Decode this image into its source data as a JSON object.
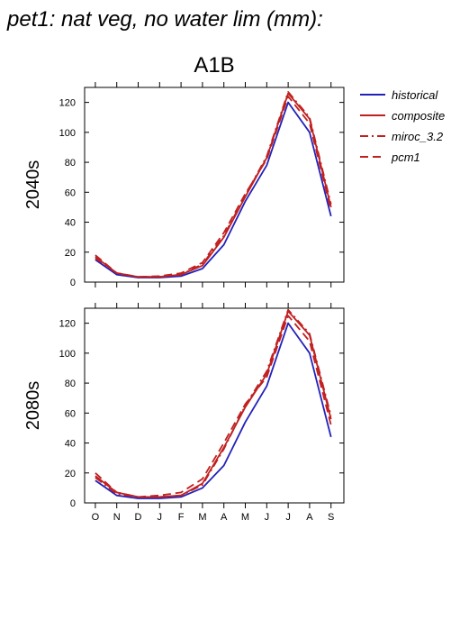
{
  "figure_title": "pet1: nat veg, no water lim (mm):",
  "chart_data": [
    {
      "type": "line",
      "title": "A1B",
      "ylabel": "2040s",
      "categories": [
        "O",
        "N",
        "D",
        "J",
        "F",
        "M",
        "A",
        "M",
        "J",
        "J",
        "A",
        "S"
      ],
      "ylim": [
        0,
        130
      ],
      "yticks": [
        0,
        20,
        40,
        60,
        80,
        100,
        120
      ],
      "series": [
        {
          "name": "historical",
          "color": "#2222bb",
          "dash": "solid",
          "values": [
            15,
            5,
            3,
            3,
            4,
            9,
            25,
            54,
            78,
            120,
            100,
            44
          ]
        },
        {
          "name": "composite",
          "color": "#c02020",
          "dash": "solid",
          "values": [
            17,
            6,
            3.5,
            3.5,
            5,
            11,
            30,
            57,
            83,
            126,
            109,
            50
          ]
        },
        {
          "name": "miroc_3.2",
          "color": "#c02020",
          "dash": "dashdot",
          "values": [
            16,
            6,
            3.5,
            3.5,
            5,
            12,
            31,
            58,
            84,
            127,
            110,
            52
          ]
        },
        {
          "name": "pcm1",
          "color": "#c02020",
          "dash": "dashed",
          "values": [
            18,
            6,
            3.5,
            4,
            6,
            13,
            33,
            59,
            82,
            124,
            106,
            48
          ]
        }
      ]
    },
    {
      "type": "line",
      "title": "",
      "ylabel": "2080s",
      "categories": [
        "O",
        "N",
        "D",
        "J",
        "F",
        "M",
        "A",
        "M",
        "J",
        "J",
        "A",
        "S"
      ],
      "ylim": [
        0,
        130
      ],
      "yticks": [
        0,
        20,
        40,
        60,
        80,
        100,
        120
      ],
      "series": [
        {
          "name": "historical",
          "color": "#2222bb",
          "dash": "solid",
          "values": [
            15,
            5,
            3,
            3,
            4,
            10,
            25,
            54,
            78,
            120,
            100,
            44
          ]
        },
        {
          "name": "composite",
          "color": "#c02020",
          "dash": "solid",
          "values": [
            18,
            7,
            4,
            4,
            5,
            13,
            37,
            64,
            86,
            128,
            112,
            56
          ]
        },
        {
          "name": "miroc_3.2",
          "color": "#c02020",
          "dash": "dashdot",
          "values": [
            17,
            6,
            4,
            4,
            5,
            12,
            36,
            65,
            88,
            129,
            113,
            58
          ]
        },
        {
          "name": "pcm1",
          "color": "#c02020",
          "dash": "dashed",
          "values": [
            20,
            7,
            4,
            5,
            7,
            16,
            40,
            66,
            84,
            125,
            108,
            52
          ]
        }
      ]
    }
  ]
}
